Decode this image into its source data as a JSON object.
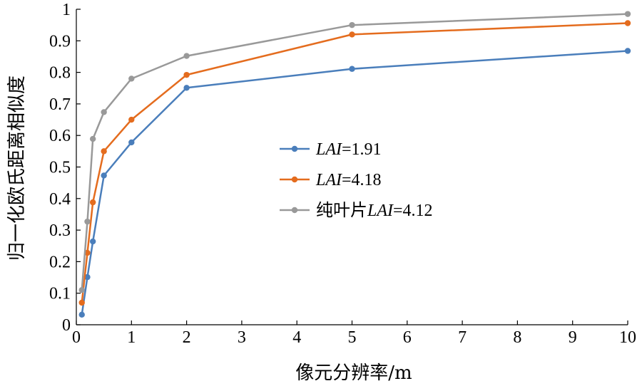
{
  "chart_data": {
    "type": "line",
    "xlabel": "像元分辨率/m",
    "ylabel": "归一化欧氏距离相似度",
    "xlim": [
      0,
      10
    ],
    "ylim": [
      0,
      1
    ],
    "xticks": [
      0,
      1,
      2,
      3,
      4,
      5,
      6,
      7,
      8,
      9,
      10
    ],
    "yticks": [
      0,
      0.1,
      0.2,
      0.3,
      0.4,
      0.5,
      0.6,
      0.7,
      0.8,
      0.9,
      1
    ],
    "ytick_labels": [
      "0",
      "0.1",
      "0.2",
      "0.3",
      "0.4",
      "0.5",
      "0.6",
      "0.7",
      "0.8",
      "0.9",
      "1"
    ],
    "xtick_labels": [
      "0",
      "1",
      "2",
      "3",
      "4",
      "5",
      "6",
      "7",
      "8",
      "9",
      "10"
    ],
    "grid": false,
    "legend_position": "center",
    "series": [
      {
        "name": "LAI=1.91",
        "legend_prefix": "",
        "legend_italic": "LAI",
        "legend_suffix": "=1.91",
        "color": "#4a7ebb",
        "x": [
          0.1,
          0.2,
          0.3,
          0.5,
          1,
          2,
          5,
          10
        ],
        "y": [
          0.032,
          0.151,
          0.264,
          0.473,
          0.578,
          0.751,
          0.811,
          0.868
        ]
      },
      {
        "name": "LAI=4.18",
        "legend_prefix": "",
        "legend_italic": "LAI",
        "legend_suffix": "=4.18",
        "color": "#e46c1e",
        "x": [
          0.1,
          0.2,
          0.3,
          0.5,
          1,
          2,
          5,
          10
        ],
        "y": [
          0.07,
          0.228,
          0.388,
          0.55,
          0.65,
          0.792,
          0.92,
          0.956
        ]
      },
      {
        "name": "纯叶片LAI=4.12",
        "legend_prefix": "纯叶片",
        "legend_italic": "LAI",
        "legend_suffix": "=4.12",
        "color": "#999999",
        "x": [
          0.1,
          0.2,
          0.3,
          0.5,
          1,
          2,
          5,
          10
        ],
        "y": [
          0.11,
          0.327,
          0.589,
          0.674,
          0.78,
          0.852,
          0.95,
          0.985
        ]
      }
    ]
  }
}
